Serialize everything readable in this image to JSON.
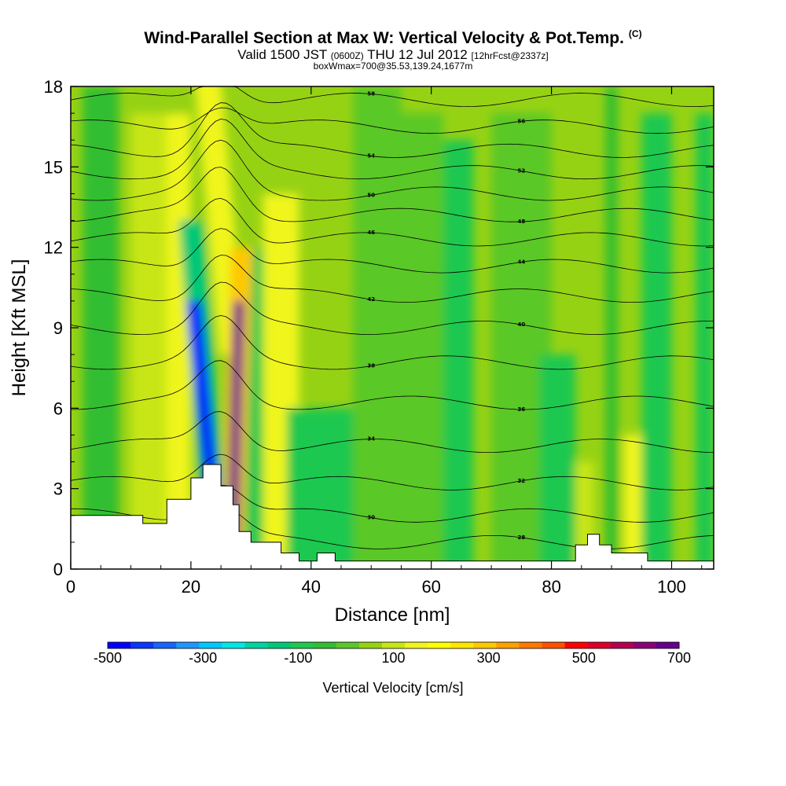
{
  "header": {
    "title": "Wind-Parallel Section at Max W: Vertical Velocity & Pot.Temp.",
    "title_mark": "(C)",
    "valid_prefix": "Valid 1500 JST",
    "valid_utc": "(0600Z)",
    "valid_date": "THU 12 Jul 2012",
    "forecast": "[12hrFcst@2337z]",
    "box_info": "boxWmax=700@35.53,139.24,1677m"
  },
  "chart_data": {
    "type": "heatmap",
    "xlabel": "Distance [nm]",
    "ylabel": "Height [Kft MSL]",
    "xlim": [
      0,
      107
    ],
    "ylim": [
      0,
      18
    ],
    "x_ticks": [
      "0",
      "20",
      "40",
      "60",
      "80",
      "100"
    ],
    "y_ticks": [
      "0",
      "3",
      "6",
      "9",
      "12",
      "15",
      "18"
    ],
    "colorbar": {
      "title": "Vertical Velocity [cm/s]",
      "labels": [
        "-500",
        "-300",
        "-100",
        "100",
        "300",
        "500",
        "700"
      ],
      "min": -500,
      "max": 700,
      "step": 50,
      "colors": [
        "#0000ff",
        "#0a37ff",
        "#1464ff",
        "#1e96ff",
        "#00c8ff",
        "#00e6e6",
        "#00d2a0",
        "#00c878",
        "#1ec850",
        "#32be32",
        "#5ac828",
        "#96d214",
        "#c8e614",
        "#f0f51e",
        "#ffff00",
        "#ffe600",
        "#ffc800",
        "#ffa000",
        "#ff7800",
        "#ff5000",
        "#ff0000",
        "#dc0028",
        "#b40050",
        "#8c0078",
        "#64008c"
      ]
    },
    "updraft_core": {
      "x": 27,
      "ymin": 1,
      "ymax": 10,
      "peak": 700
    },
    "downdraft_core": {
      "x": 23.5,
      "ymin": 3,
      "ymax": 10,
      "peak": -500
    },
    "terrain": [
      [
        0,
        2
      ],
      [
        12,
        2
      ],
      [
        12,
        1.7
      ],
      [
        16,
        1.7
      ],
      [
        16,
        2.6
      ],
      [
        20,
        2.6
      ],
      [
        20,
        3.4
      ],
      [
        22,
        3.4
      ],
      [
        22,
        3.9
      ],
      [
        25,
        3.9
      ],
      [
        25,
        3.1
      ],
      [
        27,
        3.1
      ],
      [
        27,
        2.4
      ],
      [
        28,
        2.4
      ],
      [
        28,
        1.4
      ],
      [
        30,
        1.4
      ],
      [
        30,
        1.0
      ],
      [
        35,
        1.0
      ],
      [
        35,
        0.6
      ],
      [
        38,
        0.6
      ],
      [
        38,
        0.3
      ],
      [
        41,
        0.3
      ],
      [
        41,
        0.6
      ],
      [
        44,
        0.6
      ],
      [
        44,
        0.3
      ],
      [
        84,
        0.3
      ],
      [
        84,
        0.9
      ],
      [
        86,
        0.9
      ],
      [
        86,
        1.3
      ],
      [
        88,
        1.3
      ],
      [
        88,
        0.9
      ],
      [
        90,
        0.9
      ],
      [
        90,
        0.6
      ],
      [
        96,
        0.6
      ],
      [
        96,
        0.3
      ],
      [
        107,
        0.3
      ]
    ],
    "theta_contours": [
      {
        "label": "58",
        "y": 17.5
      },
      {
        "label": "56",
        "y": 16.5
      },
      {
        "label": "54",
        "y": 15.6
      },
      {
        "label": "52",
        "y": 14.8
      },
      {
        "label": "50",
        "y": 14.0
      },
      {
        "label": "48",
        "y": 13.2
      },
      {
        "label": "46",
        "y": 12.3
      },
      {
        "label": "44",
        "y": 11.3
      },
      {
        "label": "42",
        "y": 10.2
      },
      {
        "label": "40",
        "y": 9.0
      },
      {
        "label": "38",
        "y": 7.7
      },
      {
        "label": "36",
        "y": 6.2
      },
      {
        "label": "34",
        "y": 4.6
      },
      {
        "label": "32",
        "y": 3.2
      },
      {
        "label": "30",
        "y": 2.0
      },
      {
        "label": "28",
        "y": 1.0
      }
    ]
  }
}
